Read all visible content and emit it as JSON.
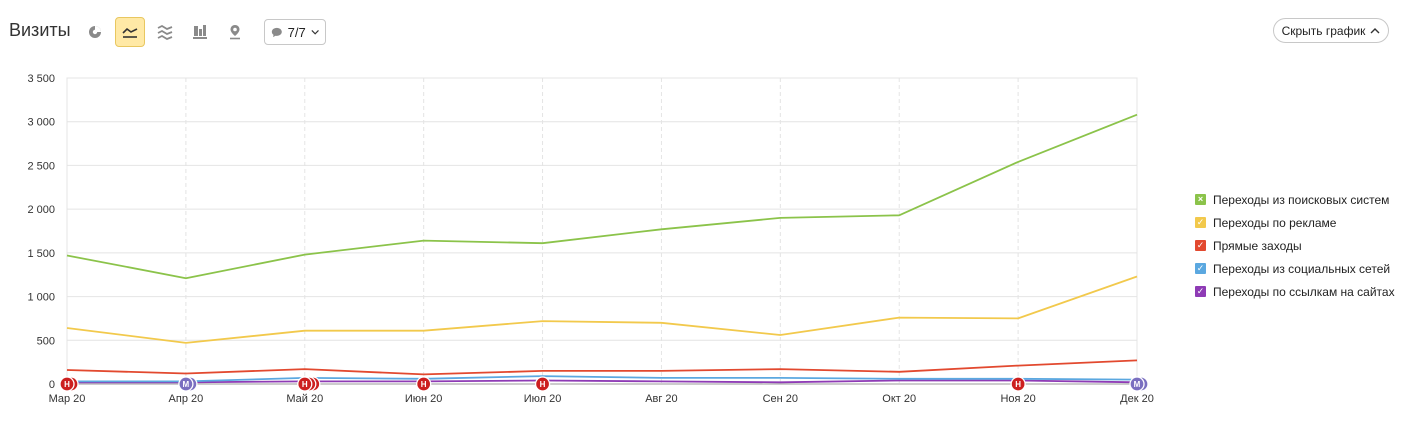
{
  "header": {
    "title": "Визиты",
    "tools": [
      {
        "name": "pie-chart-icon",
        "active": false
      },
      {
        "name": "line-chart-icon",
        "active": true
      },
      {
        "name": "area-chart-icon",
        "active": false
      },
      {
        "name": "bar-chart-icon",
        "active": false
      },
      {
        "name": "map-pin-icon",
        "active": false
      }
    ],
    "comments_label": "7/7",
    "hide_chart_label": "Скрыть график"
  },
  "colors": {
    "search": "#8bc34a",
    "ads": "#f2c94c",
    "direct": "#e2492f",
    "social": "#5ba8e0",
    "links": "#8e3bb5",
    "marker_red": "#cc1f1f",
    "marker_purple": "#7a6fc0"
  },
  "chart_data": {
    "type": "line",
    "categories": [
      "Мар 20",
      "Апр 20",
      "Май 20",
      "Июн 20",
      "Июл 20",
      "Авг 20",
      "Сен 20",
      "Окт 20",
      "Ноя 20",
      "Дек 20"
    ],
    "ylim": [
      0,
      3500
    ],
    "yticks": [
      0,
      500,
      1000,
      1500,
      2000,
      2500,
      3000,
      3500
    ],
    "ytick_labels": [
      "0",
      "500",
      "1 000",
      "1 500",
      "2 000",
      "2 500",
      "3 000",
      "3 500"
    ],
    "grid": true,
    "legend_position": "right",
    "series": [
      {
        "name": "Переходы из поисковых систем",
        "color": "#8bc34a",
        "check": "×",
        "values": [
          1470,
          1210,
          1480,
          1640,
          1610,
          1770,
          1900,
          1930,
          2540,
          3080
        ]
      },
      {
        "name": "Переходы по рекламе",
        "color": "#f2c94c",
        "check": "✓",
        "values": [
          640,
          470,
          610,
          610,
          720,
          700,
          560,
          760,
          750,
          1230
        ]
      },
      {
        "name": "Прямые заходы",
        "color": "#e2492f",
        "check": "✓",
        "values": [
          160,
          120,
          170,
          110,
          150,
          150,
          170,
          140,
          210,
          270
        ]
      },
      {
        "name": "Переходы из социальных сетей",
        "color": "#5ba8e0",
        "check": "✓",
        "values": [
          30,
          30,
          70,
          60,
          90,
          70,
          70,
          60,
          60,
          50
        ]
      },
      {
        "name": "Переходы по ссылкам на сайтах",
        "color": "#8e3bb5",
        "check": "✓",
        "values": [
          20,
          20,
          30,
          30,
          40,
          30,
          20,
          40,
          40,
          20
        ]
      }
    ],
    "markers": [
      {
        "category_index": 0,
        "label": "Н",
        "color": "#cc1f1f",
        "stack": 2
      },
      {
        "category_index": 1,
        "label": "М",
        "color": "#7a6fc0",
        "stack": 2
      },
      {
        "category_index": 2,
        "label": "Н",
        "color": "#cc1f1f",
        "stack": 3
      },
      {
        "category_index": 3,
        "label": "Н",
        "color": "#cc1f1f",
        "stack": 1
      },
      {
        "category_index": 4,
        "label": "Н",
        "color": "#cc1f1f",
        "stack": 1
      },
      {
        "category_index": 8,
        "label": "Н",
        "color": "#cc1f1f",
        "stack": 1
      },
      {
        "category_index": 9,
        "label": "М",
        "color": "#7a6fc0",
        "stack": 2
      }
    ]
  }
}
